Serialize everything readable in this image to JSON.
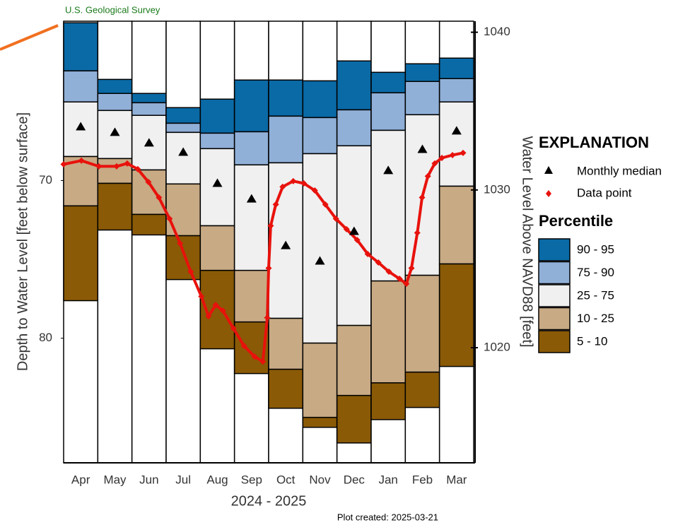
{
  "chart_data": {
    "type": "percentile_bar",
    "source": "U.S. Geological Survey",
    "y_label": "Depth to Water Level [feet below surface]",
    "y2_label": "Water Level Above NAVD88  [feet]",
    "x_label": "2024 - 2025",
    "note": "Plot created: 2025-03-21",
    "categories": [
      "Apr",
      "May",
      "Jun",
      "Jul",
      "Aug",
      "Sep",
      "Oct",
      "Nov",
      "Dec",
      "Jan",
      "Feb",
      "Mar"
    ],
    "ylim": [
      59.9,
      87.9
    ],
    "yticks": [
      70,
      80
    ],
    "y2lim": [
      1040.7,
      1012.7
    ],
    "y2ticks": [
      1020,
      1030,
      1040
    ],
    "legend_title": "EXPLANATION",
    "percentile_title": "Percentile",
    "series": [
      {
        "name": "90 - 95",
        "color": "#0a6aa6",
        "top": [
          60.0,
          63.59,
          64.48,
          65.38,
          64.84,
          63.63,
          63.63,
          63.68,
          62.42,
          63.14,
          62.6,
          62.24
        ],
        "bottom": [
          63.05,
          64.48,
          65.07,
          66.37,
          67.0,
          66.91,
          65.92,
          66.01,
          65.52,
          64.44,
          63.72,
          63.54
        ]
      },
      {
        "name": "75 - 90",
        "color": "#90b0d8",
        "top": [
          63.05,
          64.48,
          65.07,
          66.37,
          67.0,
          66.91,
          65.92,
          66.01,
          65.52,
          64.44,
          63.72,
          63.54
        ],
        "bottom": [
          65.02,
          65.56,
          65.87,
          66.95,
          67.98,
          69.01,
          68.88,
          68.3,
          67.8,
          66.82,
          65.83,
          65.02
        ]
      },
      {
        "name": "25 - 75",
        "color": "#f0f0f0",
        "top": [
          65.02,
          65.56,
          65.87,
          66.95,
          67.98,
          69.01,
          68.88,
          68.3,
          67.8,
          66.82,
          65.83,
          65.02
        ],
        "bottom": [
          68.48,
          68.61,
          69.33,
          70.22,
          72.87,
          75.7,
          78.74,
          80.31,
          79.19,
          76.37,
          76.01,
          70.36
        ]
      },
      {
        "name": "10 - 25",
        "color": "#c8aa84",
        "top": [
          68.48,
          68.61,
          69.33,
          70.22,
          72.87,
          75.7,
          78.74,
          80.31,
          79.19,
          76.37,
          76.01,
          70.36
        ],
        "bottom": [
          71.61,
          70.18,
          72.15,
          73.5,
          75.7,
          78.97,
          81.97,
          85.02,
          83.63,
          82.83,
          82.15,
          75.29
        ]
      },
      {
        "name": "5 - 10",
        "color": "#8a5a06",
        "top": [
          71.61,
          70.18,
          72.15,
          73.5,
          75.7,
          78.97,
          81.97,
          85.02,
          83.63,
          82.83,
          82.15,
          75.29
        ],
        "bottom": [
          77.62,
          73.14,
          73.45,
          76.28,
          80.67,
          82.24,
          84.44,
          85.65,
          86.64,
          85.16,
          84.39,
          81.79
        ]
      }
    ],
    "median": {
      "name": "Monthly median",
      "color": "#000000",
      "values": [
        66.6,
        66.95,
        67.62,
        68.21,
        70.18,
        71.17,
        74.13,
        75.11,
        73.23,
        69.37,
        68.03,
        66.86
      ]
    },
    "points": {
      "name": "Data point",
      "color": "#e8120c",
      "xlim": [
        0,
        12
      ],
      "x": [
        0,
        0.52,
        1.03,
        1.55,
        1.86,
        2.17,
        2.48,
        2.79,
        3.1,
        3.41,
        3.72,
        4.03,
        4.24,
        4.45,
        4.66,
        4.97,
        5.28,
        5.59,
        5.83,
        5.96,
        6.0,
        6.06,
        6.21,
        6.41,
        6.72,
        7.03,
        7.35,
        7.66,
        7.97,
        8.28,
        8.59,
        8.9,
        9.21,
        9.52,
        9.83,
        10.03,
        10.18,
        10.35,
        10.49,
        10.66,
        10.86,
        11.07,
        11.38,
        11.69
      ],
      "values": [
        68.97,
        68.74,
        69.1,
        69.1,
        68.92,
        69.28,
        70.09,
        71.08,
        72.42,
        73.99,
        75.78,
        77.35,
        78.61,
        77.89,
        78.25,
        79.37,
        80.49,
        81.17,
        81.48,
        78.7,
        75.56,
        72.87,
        71.52,
        70.4,
        70.04,
        70.18,
        70.63,
        71.52,
        72.42,
        73.09,
        73.77,
        74.66,
        75.2,
        75.78,
        76.23,
        76.55,
        75.56,
        73.32,
        71.08,
        69.73,
        68.92,
        68.57,
        68.39,
        68.25
      ]
    }
  }
}
